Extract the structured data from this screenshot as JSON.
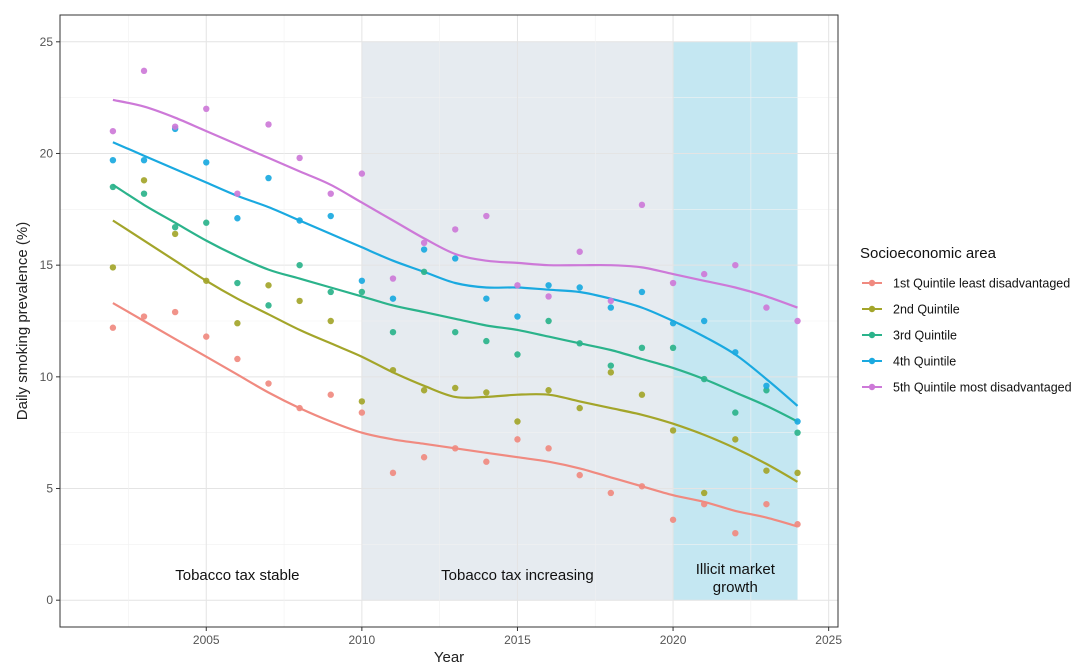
{
  "chart_data": {
    "type": "scatter",
    "xlabel": "Year",
    "ylabel": "Daily smoking prevalence (%)",
    "xlim": [
      2000.3,
      2025.3
    ],
    "ylim": [
      -1.2,
      26.2
    ],
    "x_ticks": [
      2005,
      2010,
      2015,
      2020,
      2025
    ],
    "y_ticks": [
      0,
      5,
      10,
      15,
      20,
      25
    ],
    "grid": true,
    "legend": {
      "title": "Socioeconomic area",
      "position": "right"
    },
    "regions": [
      {
        "label": "Tobacco tax stable",
        "x_start": 2002,
        "x_end": 2010,
        "color": "#ffffff"
      },
      {
        "label": "Tobacco tax increasing",
        "x_start": 2010,
        "x_end": 2020,
        "color": "#e6ebf0"
      },
      {
        "label": "Illicit market growth",
        "label_lines": [
          "Illicit market",
          "growth"
        ],
        "x_start": 2020,
        "x_end": 2024,
        "color": "#c4e7f2"
      }
    ],
    "series": [
      {
        "name": "1st Quintile least disadvantaged",
        "color": "#f08a80",
        "x": [
          2002,
          2003,
          2004,
          2005,
          2006,
          2007,
          2008,
          2009,
          2010,
          2011,
          2012,
          2013,
          2014,
          2015,
          2016,
          2017,
          2018,
          2019,
          2020,
          2021,
          2022,
          2023,
          2024
        ],
        "values": [
          12.2,
          12.7,
          12.9,
          11.8,
          10.8,
          9.7,
          8.6,
          9.2,
          8.4,
          5.7,
          6.4,
          6.8,
          6.2,
          7.2,
          6.8,
          5.6,
          4.8,
          5.1,
          3.6,
          4.3,
          3.0,
          4.3,
          3.4
        ],
        "trend": [
          13.3,
          12.5,
          11.7,
          10.9,
          10.1,
          9.3,
          8.6,
          8.0,
          7.5,
          7.2,
          7.0,
          6.8,
          6.6,
          6.4,
          6.2,
          5.9,
          5.5,
          5.1,
          4.7,
          4.4,
          4.0,
          3.7,
          3.3
        ]
      },
      {
        "name": "2nd Quintile",
        "color": "#a3a52a",
        "x": [
          2002,
          2003,
          2004,
          2005,
          2006,
          2007,
          2008,
          2009,
          2010,
          2011,
          2012,
          2013,
          2014,
          2015,
          2016,
          2017,
          2018,
          2019,
          2020,
          2021,
          2022,
          2023,
          2024
        ],
        "values": [
          14.9,
          18.8,
          16.4,
          14.3,
          12.4,
          14.1,
          13.4,
          12.5,
          8.9,
          10.3,
          9.4,
          9.5,
          9.3,
          8.0,
          9.4,
          8.6,
          10.2,
          9.2,
          7.6,
          4.8,
          7.2,
          5.8,
          5.7
        ],
        "trend": [
          17.0,
          16.1,
          15.2,
          14.3,
          13.5,
          12.8,
          12.1,
          11.5,
          10.9,
          10.2,
          9.6,
          9.1,
          9.1,
          9.2,
          9.2,
          8.9,
          8.6,
          8.3,
          7.9,
          7.4,
          6.8,
          6.1,
          5.3
        ]
      },
      {
        "name": "3rd Quintile",
        "color": "#2bb38b",
        "x": [
          2002,
          2003,
          2004,
          2005,
          2006,
          2007,
          2008,
          2009,
          2010,
          2011,
          2012,
          2013,
          2014,
          2015,
          2016,
          2017,
          2018,
          2019,
          2020,
          2021,
          2022,
          2023,
          2024
        ],
        "values": [
          18.5,
          18.2,
          16.7,
          16.9,
          14.2,
          13.2,
          15.0,
          13.8,
          13.8,
          12.0,
          14.7,
          12.0,
          11.6,
          11.0,
          12.5,
          11.5,
          10.5,
          11.3,
          11.3,
          9.9,
          8.4,
          9.4,
          7.5
        ],
        "trend": [
          18.6,
          17.7,
          16.9,
          16.1,
          15.4,
          14.8,
          14.4,
          14.0,
          13.6,
          13.2,
          12.9,
          12.6,
          12.3,
          12.1,
          11.8,
          11.5,
          11.2,
          10.8,
          10.4,
          9.9,
          9.3,
          8.7,
          8.0
        ]
      },
      {
        "name": "4th Quintile",
        "color": "#1aa9e0",
        "x": [
          2002,
          2003,
          2004,
          2005,
          2006,
          2007,
          2008,
          2009,
          2010,
          2011,
          2012,
          2013,
          2014,
          2015,
          2016,
          2017,
          2018,
          2019,
          2020,
          2021,
          2022,
          2023,
          2024
        ],
        "values": [
          19.7,
          19.7,
          21.1,
          19.6,
          17.1,
          18.9,
          17.0,
          17.2,
          14.3,
          13.5,
          15.7,
          15.3,
          13.5,
          12.7,
          14.1,
          14.0,
          13.1,
          13.8,
          12.4,
          12.5,
          11.1,
          9.6,
          8.0
        ],
        "trend": [
          20.5,
          19.9,
          19.3,
          18.7,
          18.1,
          17.6,
          17.0,
          16.4,
          15.8,
          15.2,
          14.7,
          14.2,
          14.0,
          14.0,
          13.9,
          13.8,
          13.5,
          13.1,
          12.5,
          11.8,
          11.0,
          9.9,
          8.7
        ]
      },
      {
        "name": "5th Quintile most disadvantaged",
        "color": "#cd79d8",
        "x": [
          2002,
          2003,
          2004,
          2005,
          2006,
          2007,
          2008,
          2009,
          2010,
          2011,
          2012,
          2013,
          2014,
          2015,
          2016,
          2017,
          2018,
          2019,
          2020,
          2021,
          2022,
          2023,
          2024
        ],
        "values": [
          21.0,
          23.7,
          21.2,
          22.0,
          18.2,
          21.3,
          19.8,
          18.2,
          19.1,
          14.4,
          16.0,
          16.6,
          17.2,
          14.1,
          13.6,
          15.6,
          13.4,
          17.7,
          14.2,
          14.6,
          15.0,
          13.1,
          12.5
        ],
        "trend": [
          22.4,
          22.1,
          21.6,
          21.0,
          20.4,
          19.8,
          19.2,
          18.6,
          17.8,
          17.0,
          16.2,
          15.5,
          15.2,
          15.1,
          15.0,
          15.0,
          15.0,
          14.9,
          14.6,
          14.3,
          14.0,
          13.6,
          13.1
        ]
      }
    ]
  }
}
